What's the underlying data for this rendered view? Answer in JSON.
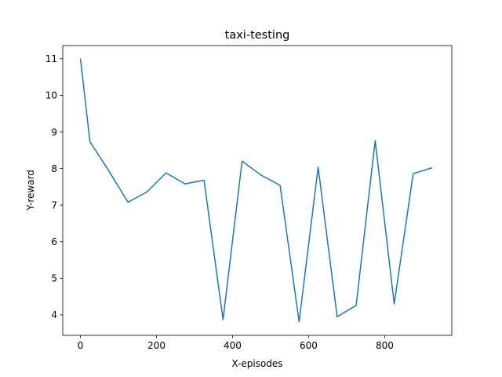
{
  "chart_data": {
    "type": "line",
    "title": "taxi-testing",
    "xlabel": "X-episodes",
    "ylabel": "Y-reward",
    "xlim": [
      -46.5,
      976.5
    ],
    "ylim": [
      3.44,
      11.36
    ],
    "xticks": [
      0,
      200,
      400,
      600,
      800
    ],
    "yticks": [
      4,
      5,
      6,
      7,
      8,
      9,
      10,
      11
    ],
    "xtick_labels": [
      "0",
      "200",
      "400",
      "600",
      "800"
    ],
    "ytick_labels": [
      "4",
      "5",
      "6",
      "7",
      "8",
      "9",
      "10",
      "11"
    ],
    "grid": false,
    "series": [
      {
        "color": "#1f77b4",
        "x": [
          0,
          25,
          75,
          125,
          175,
          225,
          275,
          325,
          375,
          425,
          475,
          525,
          575,
          625,
          675,
          725,
          775,
          825,
          875,
          925
        ],
        "y": [
          11.0,
          8.73,
          7.93,
          7.08,
          7.36,
          7.88,
          7.58,
          7.68,
          3.87,
          8.2,
          7.82,
          7.54,
          3.81,
          8.04,
          3.95,
          4.26,
          8.76,
          4.3,
          7.86,
          8.02
        ]
      }
    ]
  }
}
